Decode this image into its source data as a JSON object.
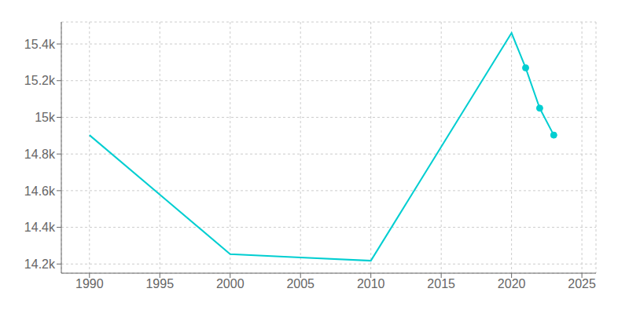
{
  "chart_data": {
    "type": "line",
    "x": [
      1990,
      2000,
      2005,
      2010,
      2020,
      2021,
      2022,
      2023
    ],
    "values": [
      14903,
      14254,
      14236,
      14218,
      15460,
      15270,
      15050,
      14903
    ],
    "color": "#00CED1",
    "marker": "circle",
    "marker_x": [
      2021,
      2022,
      2023
    ],
    "grid": true,
    "xlim": [
      1988,
      2026
    ],
    "ylim": [
      14150,
      15520
    ],
    "xticks": [
      1990,
      1995,
      2000,
      2005,
      2010,
      2015,
      2020,
      2025
    ],
    "yticks": [
      {
        "value": 14200,
        "label": "14.2k"
      },
      {
        "value": 14400,
        "label": "14.4k"
      },
      {
        "value": 14600,
        "label": "14.6k"
      },
      {
        "value": 14800,
        "label": "14.8k"
      },
      {
        "value": 15000,
        "label": "15k"
      },
      {
        "value": 15200,
        "label": "15.2k"
      },
      {
        "value": 15400,
        "label": "15.4k"
      }
    ]
  }
}
